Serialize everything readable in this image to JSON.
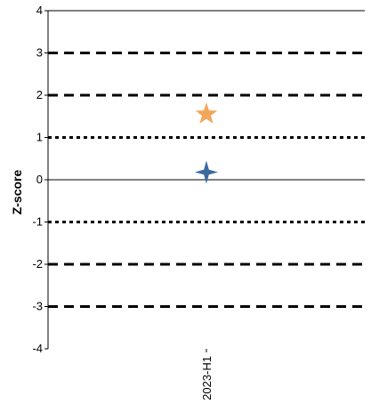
{
  "chart_data": {
    "type": "scatter",
    "title": "",
    "xlabel": "",
    "ylabel": "Z-score",
    "categories": [
      "2023-H1"
    ],
    "ylim": [
      -4,
      4
    ],
    "yticks": [
      -4,
      -3,
      -2,
      -1,
      0,
      1,
      2,
      3,
      4
    ],
    "reference_lines": [
      {
        "y": 3,
        "style": "dashed"
      },
      {
        "y": 2,
        "style": "dashed"
      },
      {
        "y": 1,
        "style": "dotted"
      },
      {
        "y": 0,
        "style": "solid"
      },
      {
        "y": -1,
        "style": "dotted"
      },
      {
        "y": -2,
        "style": "dashed"
      },
      {
        "y": -3,
        "style": "dashed"
      }
    ],
    "series": [
      {
        "marker": "star",
        "color": "#F2A65A",
        "points": [
          {
            "x": "2023-H1",
            "y": 1.55
          }
        ]
      },
      {
        "marker": "four-point-star",
        "color": "#3D6A9E",
        "points": [
          {
            "x": "2023-H1",
            "y": 0.18
          }
        ]
      }
    ],
    "grid": false,
    "legend": "none"
  }
}
